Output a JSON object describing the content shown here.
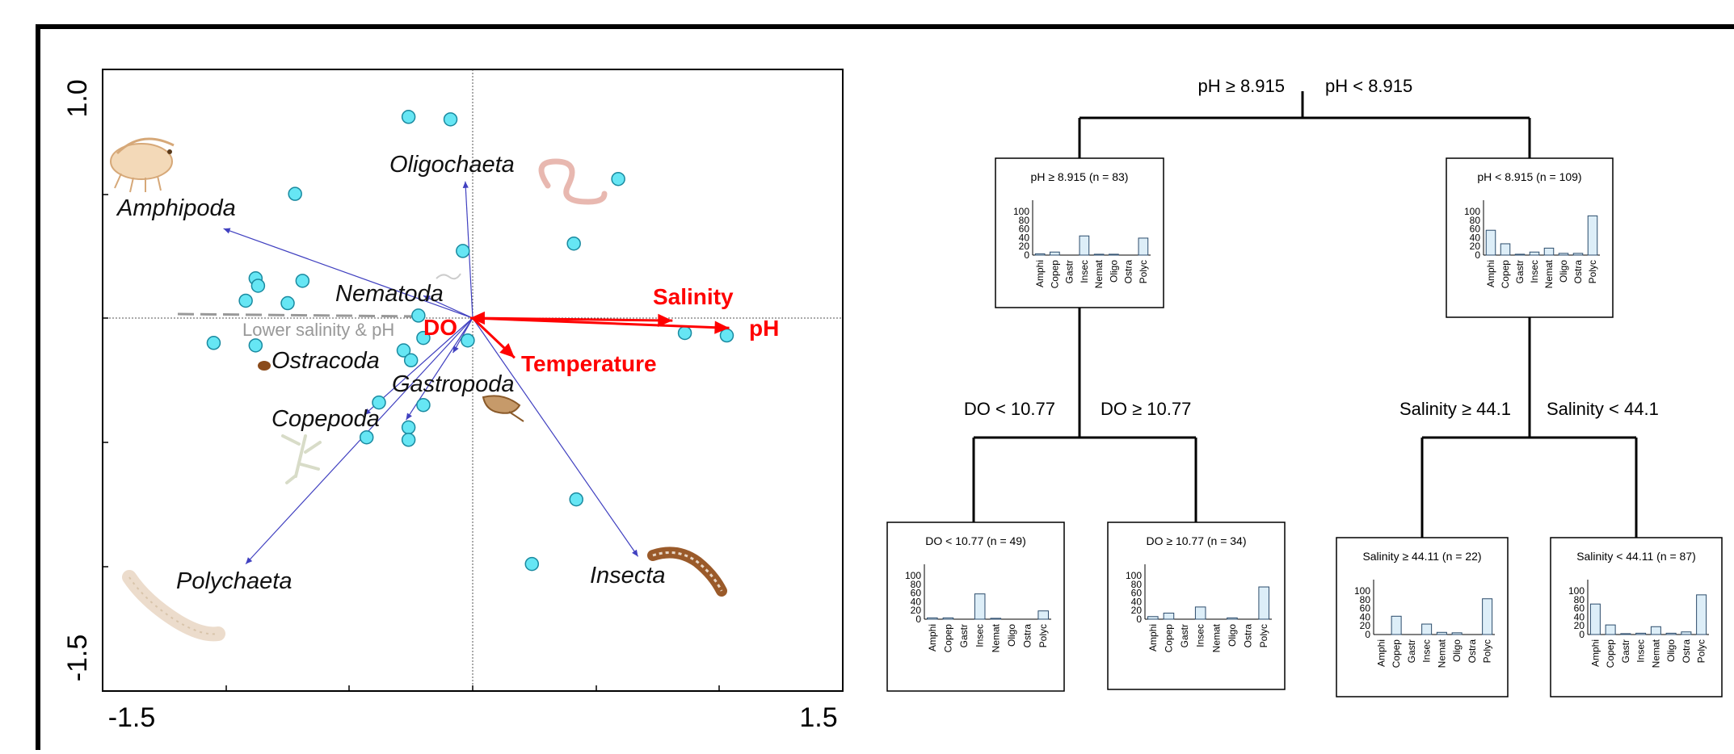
{
  "ordination": {
    "axis_ticks": {
      "y_top": "1.0",
      "y_bottom": "-1.5",
      "x_left": "-1.5",
      "x_right": "1.5"
    },
    "arrows": [
      {
        "name": "Oligochaeta",
        "to": [
          -0.03,
          0.55
        ]
      },
      {
        "name": "Amphipoda",
        "to": [
          -1.01,
          0.36
        ]
      },
      {
        "name": "Nematoda",
        "to": [
          -0.2,
          0.09
        ]
      },
      {
        "name": "Ostracoda",
        "to": [
          -0.08,
          -0.14
        ]
      },
      {
        "name": "Gastropoda",
        "to": [
          -0.27,
          -0.41
        ]
      },
      {
        "name": "Copepoda",
        "to": [
          -0.44,
          -0.39
        ]
      },
      {
        "name": "Polychaeta",
        "to": [
          -0.92,
          -0.99
        ]
      },
      {
        "name": "Insecta",
        "to": [
          0.67,
          -0.96
        ]
      }
    ],
    "env_arrows": [
      {
        "name": "Salinity",
        "to": [
          0.81,
          -0.01
        ]
      },
      {
        "name": "pH",
        "to": [
          1.04,
          -0.04
        ]
      },
      {
        "name": "Temperature",
        "to": [
          0.17,
          -0.16
        ]
      },
      {
        "name": "DO",
        "to": [
          -0.01,
          0.0
        ]
      }
    ],
    "sites": [
      [
        -0.26,
        0.81
      ],
      [
        -0.09,
        0.8
      ],
      [
        -0.72,
        0.5
      ],
      [
        0.59,
        0.56
      ],
      [
        0.41,
        0.3
      ],
      [
        -0.04,
        0.27
      ],
      [
        -0.88,
        0.16
      ],
      [
        -0.87,
        0.13
      ],
      [
        -0.69,
        0.15
      ],
      [
        -0.92,
        0.07
      ],
      [
        -0.75,
        0.06
      ],
      [
        -0.22,
        0.01
      ],
      [
        -0.2,
        -0.08
      ],
      [
        -0.28,
        -0.13
      ],
      [
        -0.25,
        -0.17
      ],
      [
        -1.05,
        -0.1
      ],
      [
        -0.88,
        -0.11
      ],
      [
        0.86,
        -0.06
      ],
      [
        1.03,
        -0.07
      ],
      [
        -0.02,
        -0.09
      ],
      [
        -0.38,
        -0.34
      ],
      [
        -0.2,
        -0.35
      ],
      [
        -0.26,
        -0.44
      ],
      [
        -0.43,
        -0.48
      ],
      [
        -0.26,
        -0.49
      ],
      [
        0.42,
        -0.73
      ],
      [
        0.24,
        -0.99
      ]
    ],
    "labels": {
      "oligochaeta": "Oligochaeta",
      "amphipoda": "Amphipoda",
      "nematoda": "Nematoda",
      "ostracoda": "Ostracoda",
      "gastropoda": "Gastropoda",
      "copepoda": "Copepoda",
      "polychaeta": "Polychaeta",
      "insecta": "Insecta",
      "salinity": "Salinity",
      "ph": "pH",
      "temperature": "Temperature",
      "do": "DO",
      "gradient": "Lower salinity & pH"
    },
    "colors": {
      "env": "#ff0000",
      "species": "#4040c0",
      "site": "#66e6f4",
      "site_stroke": "#1a8aa0"
    }
  },
  "tree": {
    "categories": [
      "Amphi",
      "Copep",
      "Gastr",
      "Insec",
      "Nemat",
      "Oligo",
      "Ostra",
      "Polyc"
    ],
    "y_ticks": [
      "100",
      "80",
      "60",
      "40",
      "20",
      "0"
    ],
    "split_labels": {
      "root_left": "pH ≥ 8.915",
      "root_right": "pH < 8.915",
      "left_left": "DO < 10.77",
      "left_right": "DO ≥ 10.77",
      "right_left": "Salinity ≥ 44.1",
      "right_right": "Salinity < 44.1"
    },
    "nodes": [
      {
        "id": "n1",
        "title": "pH ≥ 8.915  (n = 83)",
        "values": [
          3,
          7,
          0,
          44,
          2,
          2,
          0,
          39
        ]
      },
      {
        "id": "n2",
        "title": "pH < 8.915  (n = 109)",
        "values": [
          57,
          26,
          2,
          7,
          16,
          4,
          4,
          90
        ]
      },
      {
        "id": "n3",
        "title": "DO < 10.77  (n = 49)",
        "values": [
          3,
          3,
          0,
          58,
          2,
          0,
          0,
          19
        ]
      },
      {
        "id": "n4",
        "title": "DO ≥ 10.77  (n = 34)",
        "values": [
          6,
          14,
          0,
          28,
          0,
          3,
          0,
          74
        ]
      },
      {
        "id": "n5",
        "title": "Salinity ≥ 44.11   (n = 22)",
        "values": [
          0,
          42,
          0,
          24,
          5,
          4,
          0,
          82
        ]
      },
      {
        "id": "n6",
        "title": "Salinity < 44.11   (n = 87)",
        "values": [
          70,
          22,
          2,
          3,
          18,
          3,
          6,
          91
        ]
      }
    ],
    "colors": {
      "bar_fill": "#ddeef8",
      "bar_stroke": "#2b4b6b"
    }
  }
}
